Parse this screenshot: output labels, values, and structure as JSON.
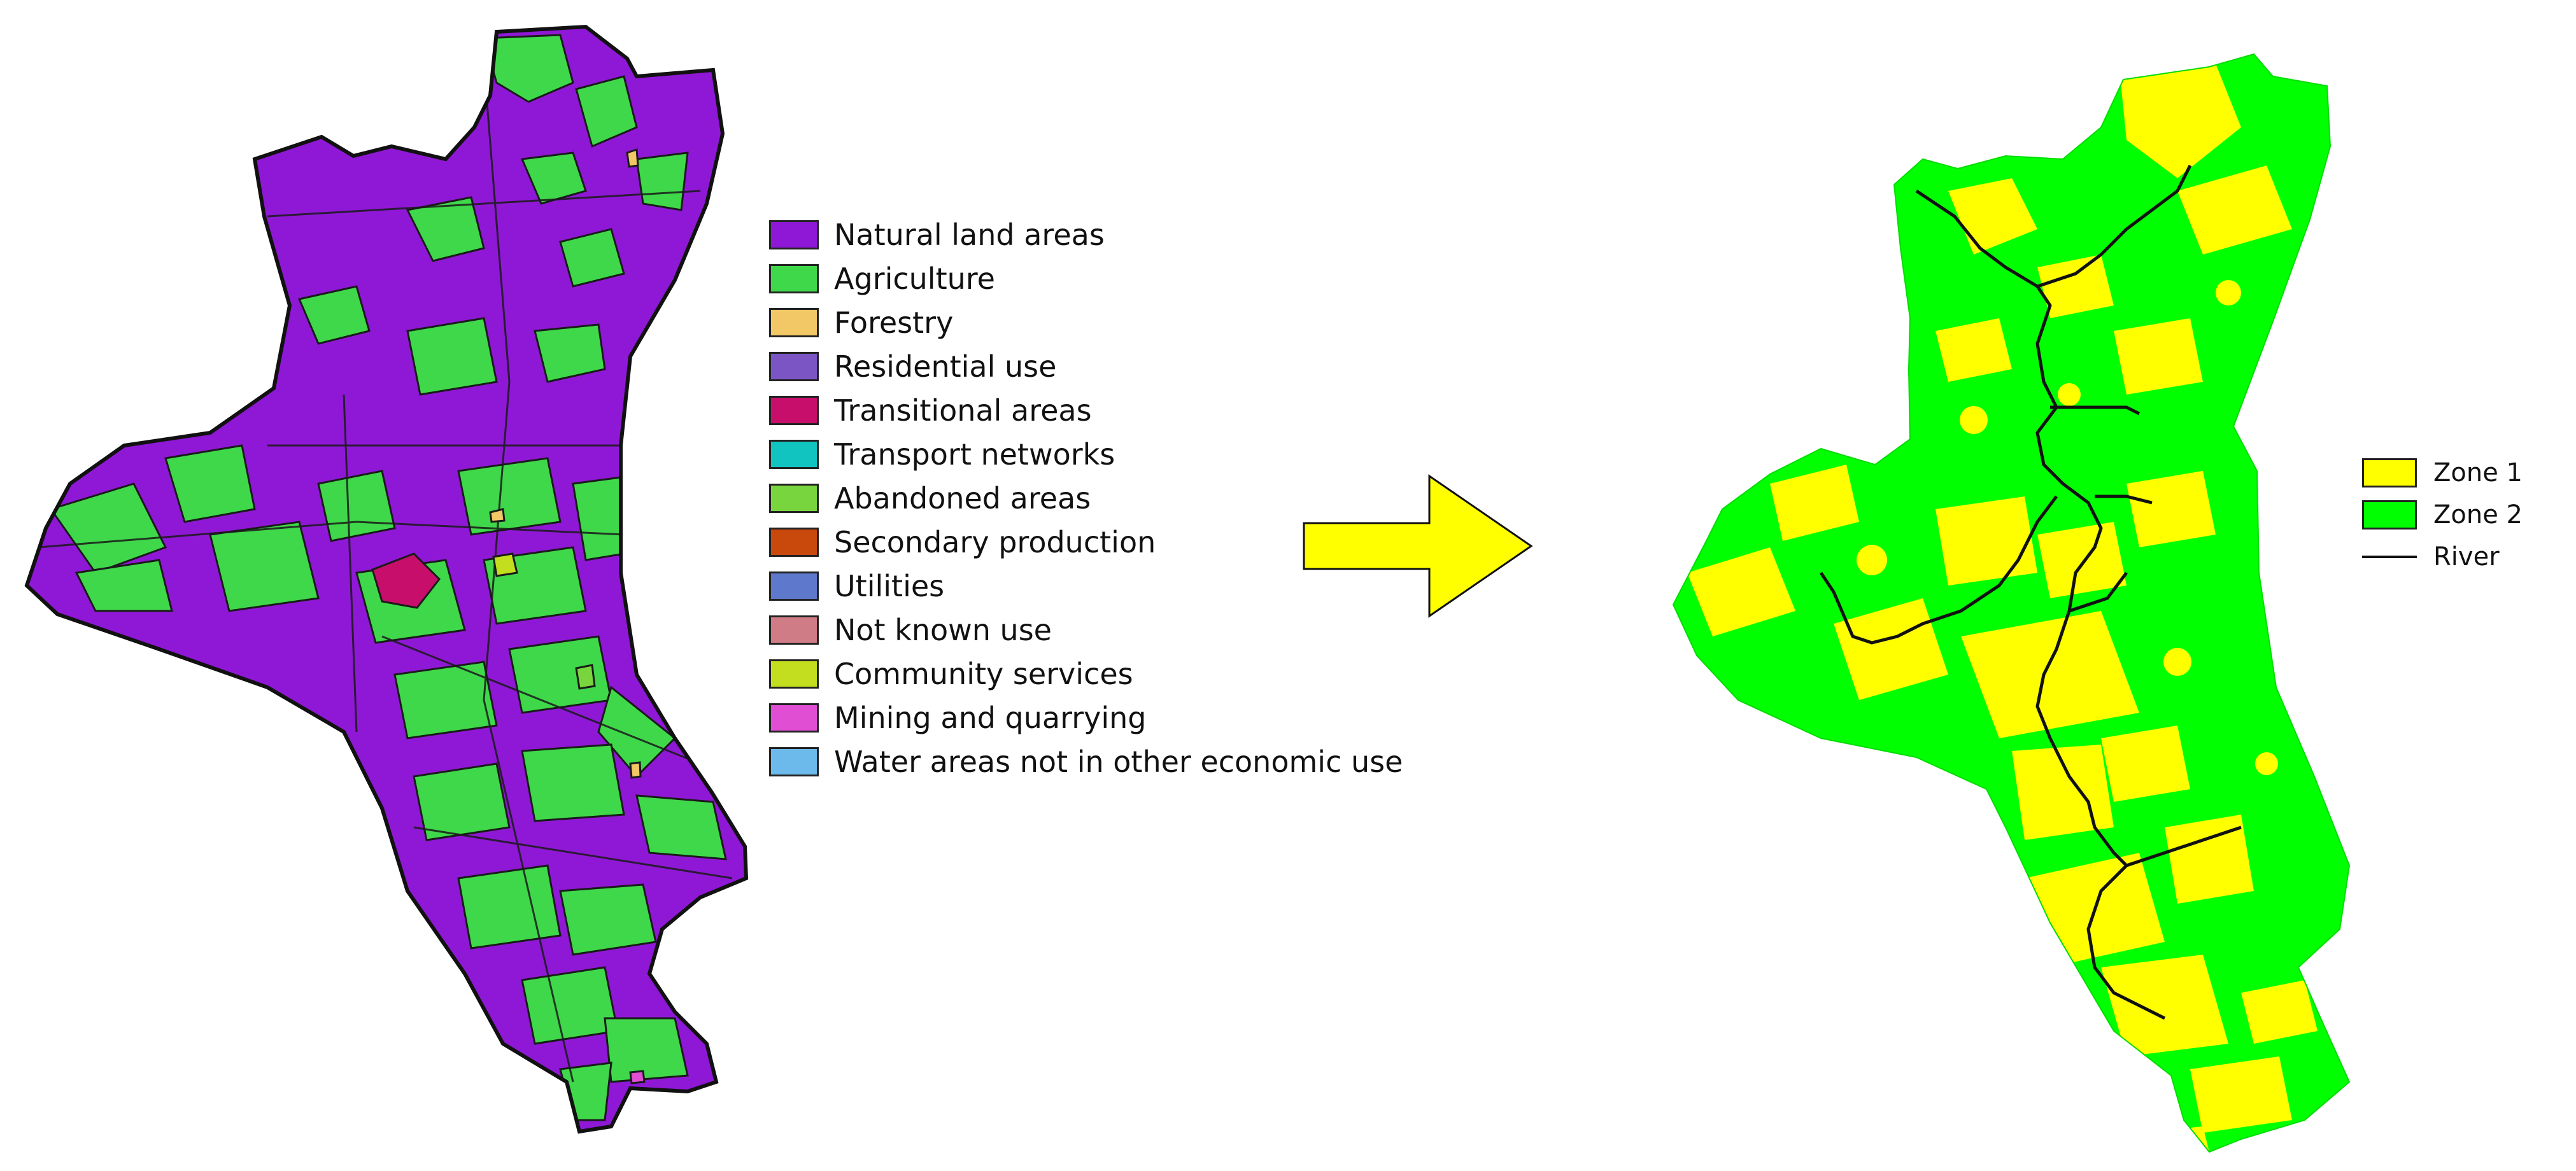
{
  "left_map": {
    "legend": [
      {
        "label": "Natural land areas",
        "color": "#8F18D6"
      },
      {
        "label": "Agriculture",
        "color": "#3FD84A"
      },
      {
        "label": "Forestry",
        "color": "#F2C765"
      },
      {
        "label": "Residential use",
        "color": "#7B55C4"
      },
      {
        "label": "Transitional areas",
        "color": "#C80E6B"
      },
      {
        "label": "Transport networks",
        "color": "#12C4C0"
      },
      {
        "label": "Abandoned areas",
        "color": "#78D53D"
      },
      {
        "label": "Secondary production",
        "color": "#C9480C"
      },
      {
        "label": "Utilities",
        "color": "#5E78CC"
      },
      {
        "label": "Not known use",
        "color": "#D07C86"
      },
      {
        "label": "Community services",
        "color": "#C2DE1E"
      },
      {
        "label": "Mining and quarrying",
        "color": "#E04ED4"
      },
      {
        "label": "Water areas not in other economic use",
        "color": "#6CBAEC"
      }
    ]
  },
  "arrow": {
    "color": "#FFFF00",
    "direction": "right"
  },
  "right_map": {
    "legend": {
      "zone1": {
        "label": "Zone 1",
        "color": "#FFFF00"
      },
      "zone2": {
        "label": "Zone 2",
        "color": "#00FF00"
      },
      "river": {
        "label": "River",
        "color": "#111111"
      }
    }
  }
}
